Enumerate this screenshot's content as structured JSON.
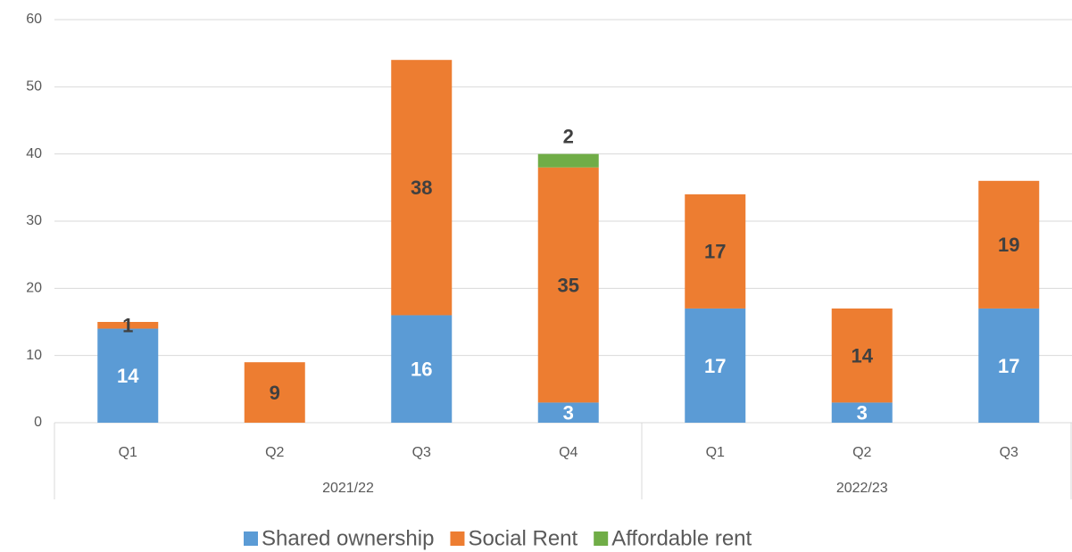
{
  "chart_data": {
    "type": "stacked_bar",
    "groups": [
      {
        "name": "2021/22",
        "categories": [
          "Q1",
          "Q2",
          "Q3",
          "Q4"
        ]
      },
      {
        "name": "2022/23",
        "categories": [
          "Q1",
          "Q2",
          "Q3"
        ]
      }
    ],
    "series": [
      {
        "name": "Shared ownership",
        "color": "#5b9bd5",
        "values": [
          14,
          null,
          16,
          3,
          17,
          3,
          17
        ]
      },
      {
        "name": "Social Rent",
        "color": "#ed7d31",
        "values": [
          1,
          9,
          38,
          35,
          17,
          14,
          19
        ]
      },
      {
        "name": "Affordable rent",
        "color": "#70ad47",
        "values": [
          null,
          null,
          null,
          2,
          null,
          null,
          null
        ]
      }
    ],
    "ylim": [
      0,
      60
    ],
    "yticks": [
      0,
      10,
      20,
      30,
      40,
      50,
      60
    ],
    "grid": true,
    "legend": "bottom"
  }
}
